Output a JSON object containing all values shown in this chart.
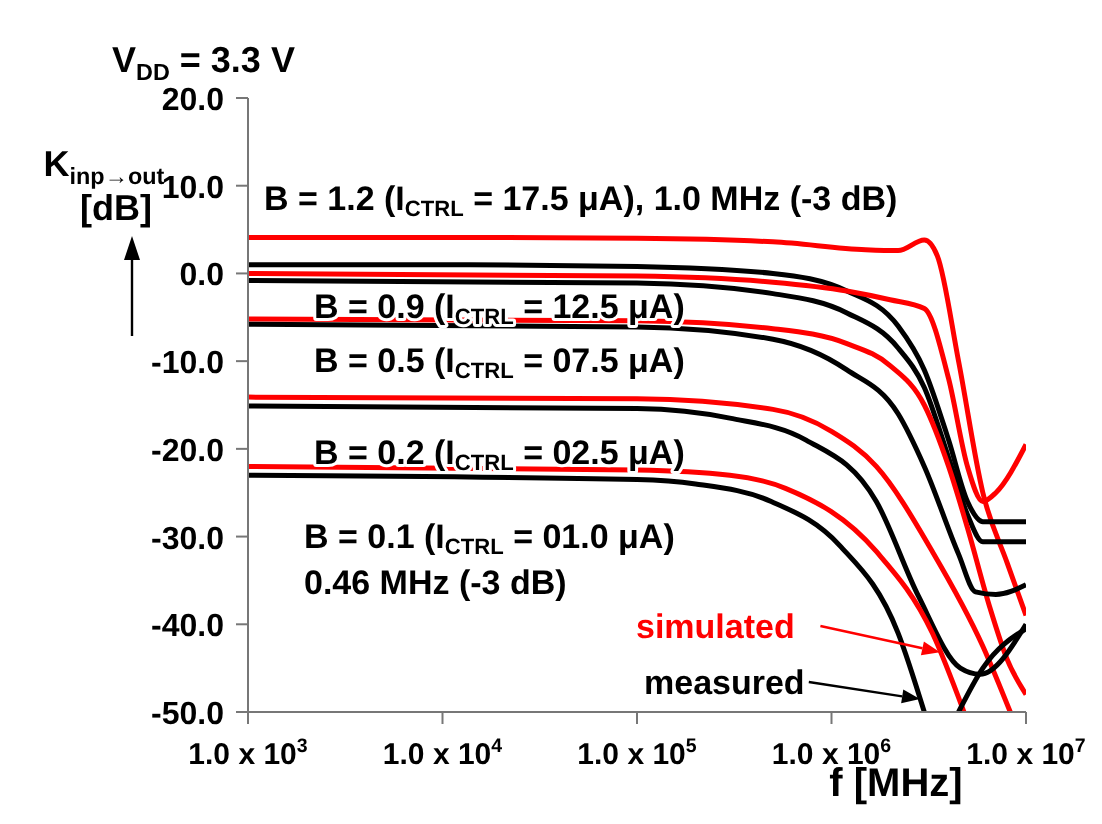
{
  "chart_data": {
    "type": "line",
    "title": "V$_{DD}$ = 3.3 V",
    "xlabel": "f [MHz]",
    "ylabel": "K$_{inp→out}$ [dB]",
    "log": "x",
    "xlim": [
      1000,
      10000000
    ],
    "xticks": [
      {
        "value": 1000,
        "label": "1.0 x 10$^{3}$"
      },
      {
        "value": 10000,
        "label": "1.0 x 10$^{4}$"
      },
      {
        "value": 100000,
        "label": "1.0 x 10$^{5}$"
      },
      {
        "value": 1000000,
        "label": "1.0 x 10$^{6}$"
      },
      {
        "value": 10000000,
        "label": "1.0 x 10$^{7}$"
      }
    ],
    "ylim": [
      -50,
      20
    ],
    "yticks": [
      {
        "value": -50,
        "label": "-50.0"
      },
      {
        "value": -40,
        "label": "-40.0"
      },
      {
        "value": -30,
        "label": "-30.0"
      },
      {
        "value": -20,
        "label": "-20.0"
      },
      {
        "value": -10,
        "label": "-10.0"
      },
      {
        "value": 0,
        "label": "0.0"
      },
      {
        "value": 10,
        "label": "10.0"
      },
      {
        "value": 20,
        "label": "20.0"
      }
    ],
    "series": [
      {
        "color": "#ff0000",
        "x": [
          1000,
          10000,
          100000,
          500000,
          1500000,
          2200000,
          3000000,
          3500000,
          4500000,
          6000000,
          8000000,
          10000000
        ],
        "values": [
          4.1,
          4.1,
          4.0,
          3.6,
          2.7,
          2.6,
          3.8,
          2.0,
          -10,
          -25,
          -33,
          -39
        ]
      },
      {
        "color": "#000000",
        "x": [
          1000,
          10000,
          100000,
          500000,
          1200000,
          2200000,
          3000000,
          4000000,
          5000000,
          6000000,
          10000000
        ],
        "values": [
          1.0,
          1.0,
          0.8,
          0,
          -2,
          -6,
          -11,
          -19,
          -26,
          -28.3,
          -28.3
        ]
      },
      {
        "color": "#ff0000",
        "x": [
          1000,
          100000,
          500000,
          1200000,
          2000000,
          3000000,
          4000000,
          5000000,
          6000000,
          7000000,
          10000000
        ],
        "values": [
          0,
          -0.3,
          -1,
          -2,
          -3,
          -4,
          -12,
          -22,
          -26,
          -25,
          -19.5
        ]
      },
      {
        "color": "#000000",
        "x": [
          1000,
          100000,
          500000,
          1200000,
          2200000,
          3000000,
          4000000,
          5000000,
          6000000,
          10000000
        ],
        "values": [
          -0.8,
          -1.1,
          -2.3,
          -4.5,
          -8.5,
          -13,
          -21,
          -27.5,
          -30.6,
          -30.6
        ]
      },
      {
        "color": "#ff0000",
        "x": [
          1000,
          100000,
          500000,
          1200000,
          2000000,
          3000000,
          4000000,
          5000000,
          6500000,
          8000000,
          10000000
        ],
        "values": [
          -5.2,
          -5.4,
          -6.3,
          -8,
          -10.5,
          -15,
          -22,
          -29,
          -38,
          -44,
          -48
        ]
      },
      {
        "color": "#000000",
        "x": [
          1000,
          100000,
          500000,
          1200000,
          2200000,
          3000000,
          4500000,
          5500000,
          7000000,
          10000000
        ],
        "values": [
          -5.8,
          -6.1,
          -7.5,
          -11,
          -16,
          -22,
          -32,
          -36.3,
          -36.6,
          -35.5
        ]
      },
      {
        "color": "#ff0000",
        "x": [
          1000,
          100000,
          500000,
          1000000,
          1700000,
          3300000,
          6000000,
          8300000
        ],
        "values": [
          -14.1,
          -14.3,
          -15.5,
          -18,
          -22,
          -31.7,
          -42.5,
          -50
        ]
      },
      {
        "color": "#000000",
        "x": [
          1000,
          100000,
          300000,
          740000,
          1700000,
          2800000,
          4600000,
          5800000,
          10000000
        ],
        "values": [
          -15.1,
          -15.4,
          -16.5,
          -19,
          -26,
          -36.8,
          -45,
          -45.7,
          -40
        ]
      },
      {
        "color": "#ff0000",
        "x": [
          1000,
          100000,
          300000,
          580000,
          1700000,
          3300000,
          4800000
        ],
        "values": [
          -22,
          -22.4,
          -23,
          -24.5,
          -31.7,
          -41,
          -50
        ]
      },
      {
        "color": "#000000",
        "x": [
          1000,
          100000,
          200000,
          490000,
          1100000,
          2200000,
          3000000,
          3800000,
          4500000,
          6000000,
          10000000
        ],
        "values": [
          -23,
          -23.5,
          -24,
          -26,
          -31,
          -41,
          -50,
          null,
          -50,
          -45,
          -40.5
        ]
      }
    ],
    "annotations": [
      "B = 1.2 (I$_{CTRL}$ = 17.5 μA), 1.0 MHz (-3 dB)",
      "B = 0.9 (I$_{CTRL}$ = 12.5 μA)",
      "B = 0.5 (I$_{CTRL}$ = 07.5 μA)",
      "B = 0.2 (I$_{CTRL}$ = 02.5 μA)",
      "B = 0.1 (I$_{CTRL}$ = 01.0 μA)",
      "0.46 MHz (-3 dB)",
      "simulated",
      "measured"
    ]
  }
}
